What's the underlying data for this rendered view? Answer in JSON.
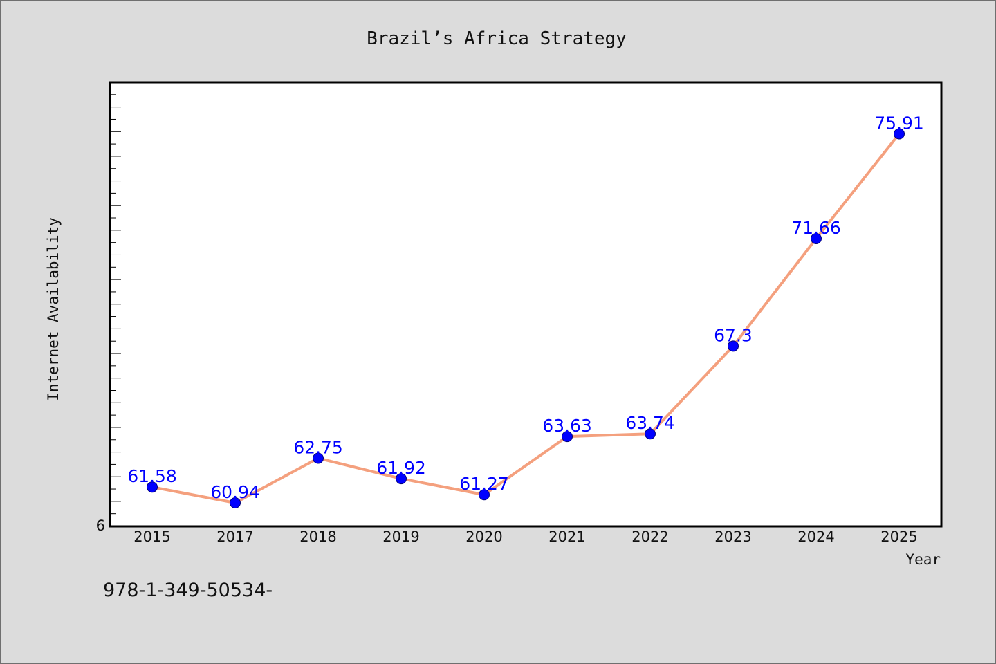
{
  "footer_text": "978-1-349-50534-",
  "chart_data": {
    "type": "line",
    "title": "Brazil’s Africa Strategy",
    "xlabel": "Year",
    "ylabel": "Internet Availability",
    "categories": [
      "2015",
      "2017",
      "2018",
      "2019",
      "2020",
      "2021",
      "2022",
      "2023",
      "2024",
      "2025"
    ],
    "series": [
      {
        "values": [
          61.58,
          60.94,
          62.75,
          61.92,
          61.27,
          63.63,
          63.74,
          67.3,
          71.66,
          75.91
        ],
        "data_labels": [
          "61.58",
          "60.94",
          "62.75",
          "61.92",
          "61.27",
          "63.63",
          "63.74",
          "67.3",
          "71.66",
          "75.91"
        ]
      }
    ],
    "ylim": [
      60,
      78
    ],
    "y_tick_labels": [
      "6"
    ],
    "grid": false,
    "legend": "none",
    "colors": {
      "background": "#dcdcdc",
      "plot_background": "#ffffff",
      "line": "#f4a07e",
      "marker": "#0000ff",
      "data_label": "#0000ff"
    }
  }
}
